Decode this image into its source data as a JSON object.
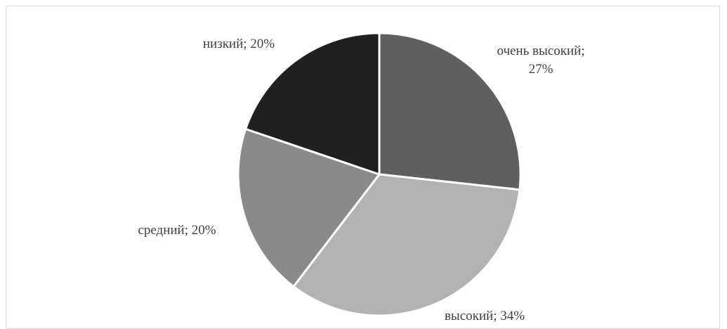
{
  "chart_data": {
    "type": "pie",
    "title": "",
    "categories": [
      "очень высокий",
      "высокий",
      "средний",
      "низкий"
    ],
    "values": [
      27,
      34,
      20,
      20
    ],
    "labels": [
      [
        "очень высокий;",
        "27%"
      ],
      [
        "высокий; 34%"
      ],
      [
        "средний; 20%"
      ],
      [
        "низкий; 20%"
      ]
    ],
    "colors": [
      "#5f5f5f",
      "#b2b2b2",
      "#8a8a8a",
      "#202020"
    ],
    "start": "12 o'clock",
    "direction": "clockwise",
    "legend": "none"
  }
}
